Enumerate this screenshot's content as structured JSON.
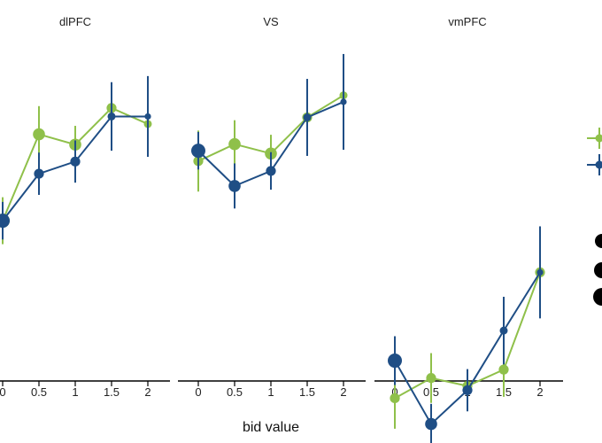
{
  "chart_data": {
    "type": "scatter",
    "xlabel": "bid value",
    "ylabel": "",
    "xlim": [
      0,
      2
    ],
    "ylim": [
      0,
      1
    ],
    "grid": false,
    "legend_position": "right",
    "colors": {
      "series_a": "#8fc04a",
      "series_b": "#1f4e85",
      "axis": "#000000"
    },
    "categories": [
      "0",
      "0.5",
      "1",
      "1.5",
      "2"
    ],
    "panels": [
      {
        "title": "dlPFC",
        "series": [
          {
            "color": "#8fc04a",
            "points": [
              {
                "x": 0,
                "y": 0.53,
                "lo": 0.48,
                "hi": 0.58,
                "size": 5
              },
              {
                "x": 0.5,
                "y": 0.714,
                "lo": 0.654,
                "hi": 0.774,
                "size": 4
              },
              {
                "x": 1,
                "y": 0.692,
                "lo": 0.652,
                "hi": 0.732,
                "size": 4
              },
              {
                "x": 1.5,
                "y": 0.77,
                "lo": 0.738,
                "hi": 0.802,
                "size": 3
              },
              {
                "x": 2,
                "y": 0.736,
                "lo": 0.706,
                "hi": 0.766,
                "size": 2
              }
            ]
          },
          {
            "color": "#1f4e85",
            "points": [
              {
                "x": 0,
                "y": 0.53,
                "lo": 0.49,
                "hi": 0.57,
                "size": 5
              },
              {
                "x": 0.5,
                "y": 0.63,
                "lo": 0.585,
                "hi": 0.675,
                "size": 3
              },
              {
                "x": 1,
                "y": 0.656,
                "lo": 0.611,
                "hi": 0.701,
                "size": 3
              },
              {
                "x": 1.5,
                "y": 0.752,
                "lo": 0.679,
                "hi": 0.825,
                "size": 2
              },
              {
                "x": 2,
                "y": 0.752,
                "lo": 0.666,
                "hi": 0.838,
                "size": 1
              }
            ]
          }
        ]
      },
      {
        "title": "VS",
        "series": [
          {
            "color": "#8fc04a",
            "points": [
              {
                "x": 0,
                "y": 0.657,
                "lo": 0.592,
                "hi": 0.722,
                "size": 3
              },
              {
                "x": 0.5,
                "y": 0.693,
                "lo": 0.642,
                "hi": 0.744,
                "size": 4
              },
              {
                "x": 1,
                "y": 0.673,
                "lo": 0.633,
                "hi": 0.713,
                "size": 4
              },
              {
                "x": 1.5,
                "y": 0.75,
                "lo": 0.72,
                "hi": 0.78,
                "size": 3
              },
              {
                "x": 2,
                "y": 0.797,
                "lo": 0.772,
                "hi": 0.822,
                "size": 2
              }
            ]
          },
          {
            "color": "#1f4e85",
            "points": [
              {
                "x": 0,
                "y": 0.679,
                "lo": 0.639,
                "hi": 0.719,
                "size": 5
              },
              {
                "x": 0.5,
                "y": 0.604,
                "lo": 0.556,
                "hi": 0.652,
                "size": 4
              },
              {
                "x": 1,
                "y": 0.636,
                "lo": 0.596,
                "hi": 0.676,
                "size": 3
              },
              {
                "x": 1.5,
                "y": 0.75,
                "lo": 0.668,
                "hi": 0.832,
                "size": 2
              },
              {
                "x": 2,
                "y": 0.783,
                "lo": 0.681,
                "hi": 0.885,
                "size": 1
              }
            ]
          }
        ]
      },
      {
        "title": "vmPFC",
        "series": [
          {
            "color": "#8fc04a",
            "points": [
              {
                "x": 0,
                "y": 0.152,
                "lo": 0.087,
                "hi": 0.217,
                "size": 3
              },
              {
                "x": 0.5,
                "y": 0.195,
                "lo": 0.142,
                "hi": 0.248,
                "size": 3
              },
              {
                "x": 1,
                "y": 0.178,
                "lo": 0.15,
                "hi": 0.206,
                "size": 3
              },
              {
                "x": 1.5,
                "y": 0.213,
                "lo": 0.155,
                "hi": 0.271,
                "size": 3
              },
              {
                "x": 2,
                "y": 0.42,
                "lo": 0.396,
                "hi": 0.444,
                "size": 3
              }
            ]
          },
          {
            "color": "#1f4e85",
            "points": [
              {
                "x": 0,
                "y": 0.232,
                "lo": 0.18,
                "hi": 0.284,
                "size": 5
              },
              {
                "x": 0.5,
                "y": 0.097,
                "lo": 0.054,
                "hi": 0.14,
                "size": 4
              },
              {
                "x": 1,
                "y": 0.169,
                "lo": 0.124,
                "hi": 0.214,
                "size": 3
              },
              {
                "x": 1.5,
                "y": 0.296,
                "lo": 0.224,
                "hi": 0.368,
                "size": 2
              },
              {
                "x": 2,
                "y": 0.42,
                "lo": 0.322,
                "hi": 0.518,
                "size": 1
              }
            ]
          }
        ]
      }
    ]
  }
}
